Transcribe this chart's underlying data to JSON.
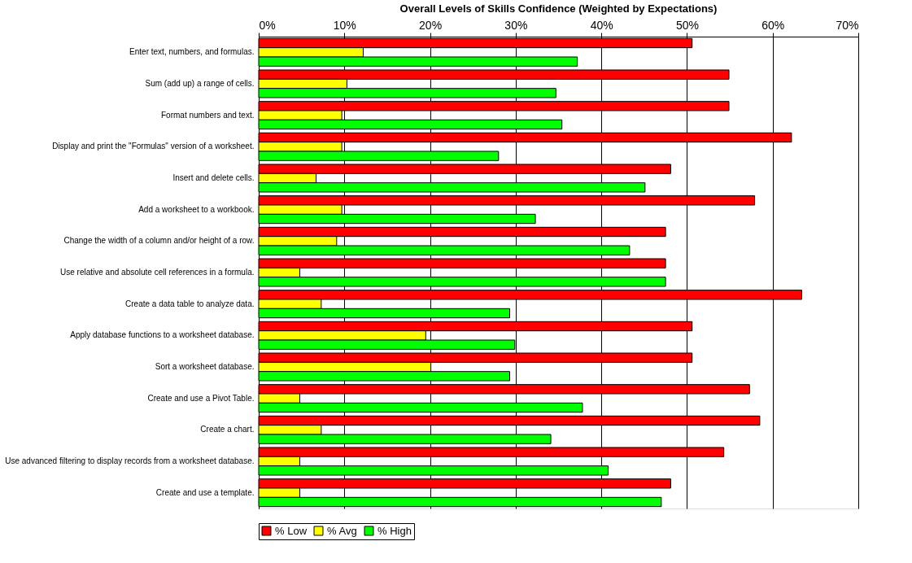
{
  "chart_data": {
    "type": "bar",
    "orientation": "horizontal",
    "title": "Overall Levels of Skills Confidence (Weighted by Expectations)",
    "categories": [
      "Enter text, numbers, and formulas.",
      "Sum (add up) a range of cells.",
      "Format numbers and text.",
      "Display and print the \"Formulas\" version of a worksheet.",
      "Insert and delete cells.",
      "Add a worksheet to a workbook.",
      "Change the width of a column and/or height of a row.",
      "Use relative and absolute cell references in a formula.",
      "Create a data table to analyze data.",
      "Apply database functions to a worksheet database.",
      "Sort a worksheet database.",
      "Create and use a Pivot Table.",
      "Create a chart.",
      "Use advanced filtering to display records from a worksheet database.",
      "Create and use a template."
    ],
    "series": [
      {
        "name": "% Low",
        "color": "#ff0000",
        "values": [
          50.6,
          54.9,
          54.9,
          62.2,
          48.1,
          57.9,
          47.5,
          47.5,
          63.4,
          50.6,
          50.6,
          57.3,
          58.5,
          54.3,
          48.1
        ]
      },
      {
        "name": "% Avg",
        "color": "#ffff00",
        "values": [
          12.2,
          10.3,
          9.7,
          9.7,
          6.7,
          9.7,
          9.1,
          4.8,
          7.3,
          19.5,
          20.1,
          4.8,
          7.3,
          4.8,
          4.8
        ]
      },
      {
        "name": "% High",
        "color": "#00ff00",
        "values": [
          37.2,
          34.7,
          35.4,
          28.0,
          45.1,
          32.3,
          43.3,
          47.5,
          29.3,
          29.9,
          29.3,
          37.8,
          34.1,
          40.8,
          47.0
        ]
      }
    ],
    "xlim": [
      0,
      70
    ],
    "xticks": [
      {
        "value": 0,
        "label": "0%"
      },
      {
        "value": 10,
        "label": "10%"
      },
      {
        "value": 20,
        "label": "20%"
      },
      {
        "value": 30,
        "label": "30%"
      },
      {
        "value": 40,
        "label": "40%"
      },
      {
        "value": 50,
        "label": "50%"
      },
      {
        "value": 60,
        "label": "60%"
      },
      {
        "value": 70,
        "label": "70%"
      }
    ],
    "grid": "x",
    "legend": "bottom"
  }
}
